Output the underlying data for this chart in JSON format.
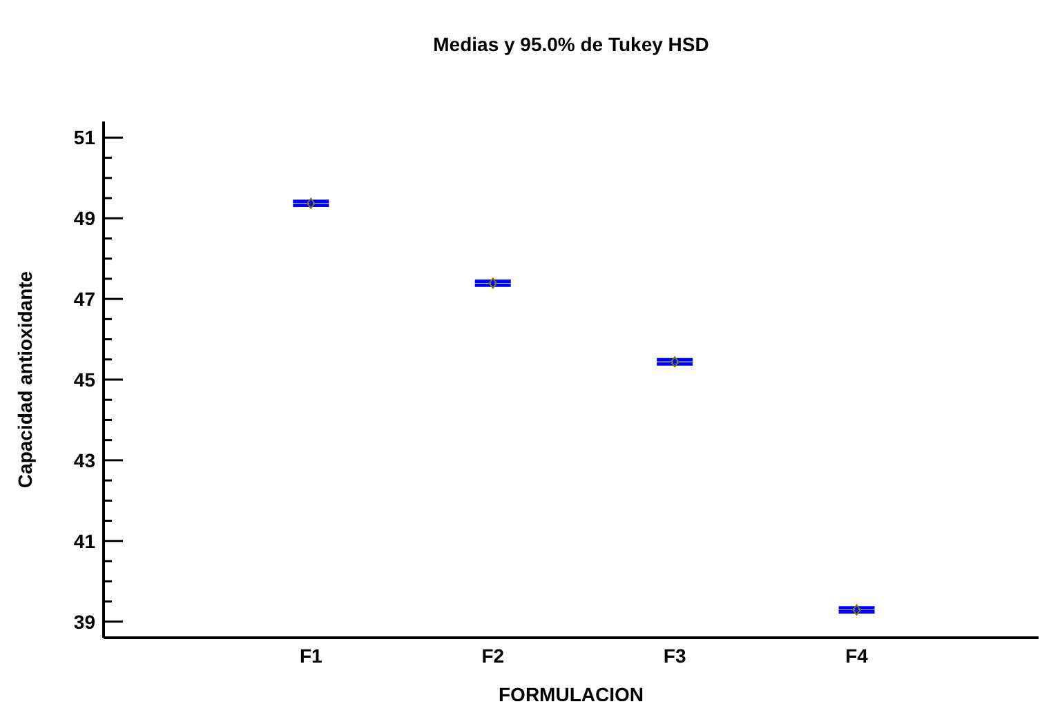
{
  "chart_data": {
    "type": "scatter",
    "title": "Medias y 95.0% de Tukey HSD",
    "xlabel": "FORMULACION",
    "ylabel": "Capacidad antioxidante",
    "categories": [
      "F1",
      "F2",
      "F3",
      "F4"
    ],
    "series": [
      {
        "color": "#7a7a00",
        "values": [
          49.37,
          47.39,
          45.44,
          39.29
        ],
        "errors": [
          0.05,
          0.05,
          0.05,
          0.05
        ]
      }
    ],
    "marker": "diamond",
    "ylim": [
      38.6,
      51.4
    ],
    "yticks": [
      39,
      {
        "value": 39.5,
        "label": null
      },
      {
        "value": 40,
        "label": null
      },
      {
        "value": 40.5,
        "label": null
      },
      41,
      {
        "value": 41.5,
        "label": null
      },
      {
        "value": 42,
        "label": null
      },
      {
        "value": 42.5,
        "label": null
      },
      43,
      {
        "value": 43.5,
        "label": null
      },
      {
        "value": 44,
        "label": null
      },
      {
        "value": 44.5,
        "label": null
      },
      45,
      {
        "value": 45.5,
        "label": null
      },
      {
        "value": 46,
        "label": null
      },
      {
        "value": 46.5,
        "label": null
      },
      47,
      {
        "value": 47.5,
        "label": null
      },
      {
        "value": 48,
        "label": null
      },
      {
        "value": 48.5,
        "label": null
      },
      49,
      {
        "value": 49.5,
        "label": null
      },
      {
        "value": 50,
        "label": null
      },
      {
        "value": 50.5,
        "label": null
      },
      51
    ],
    "grid": false,
    "legend": false
  }
}
